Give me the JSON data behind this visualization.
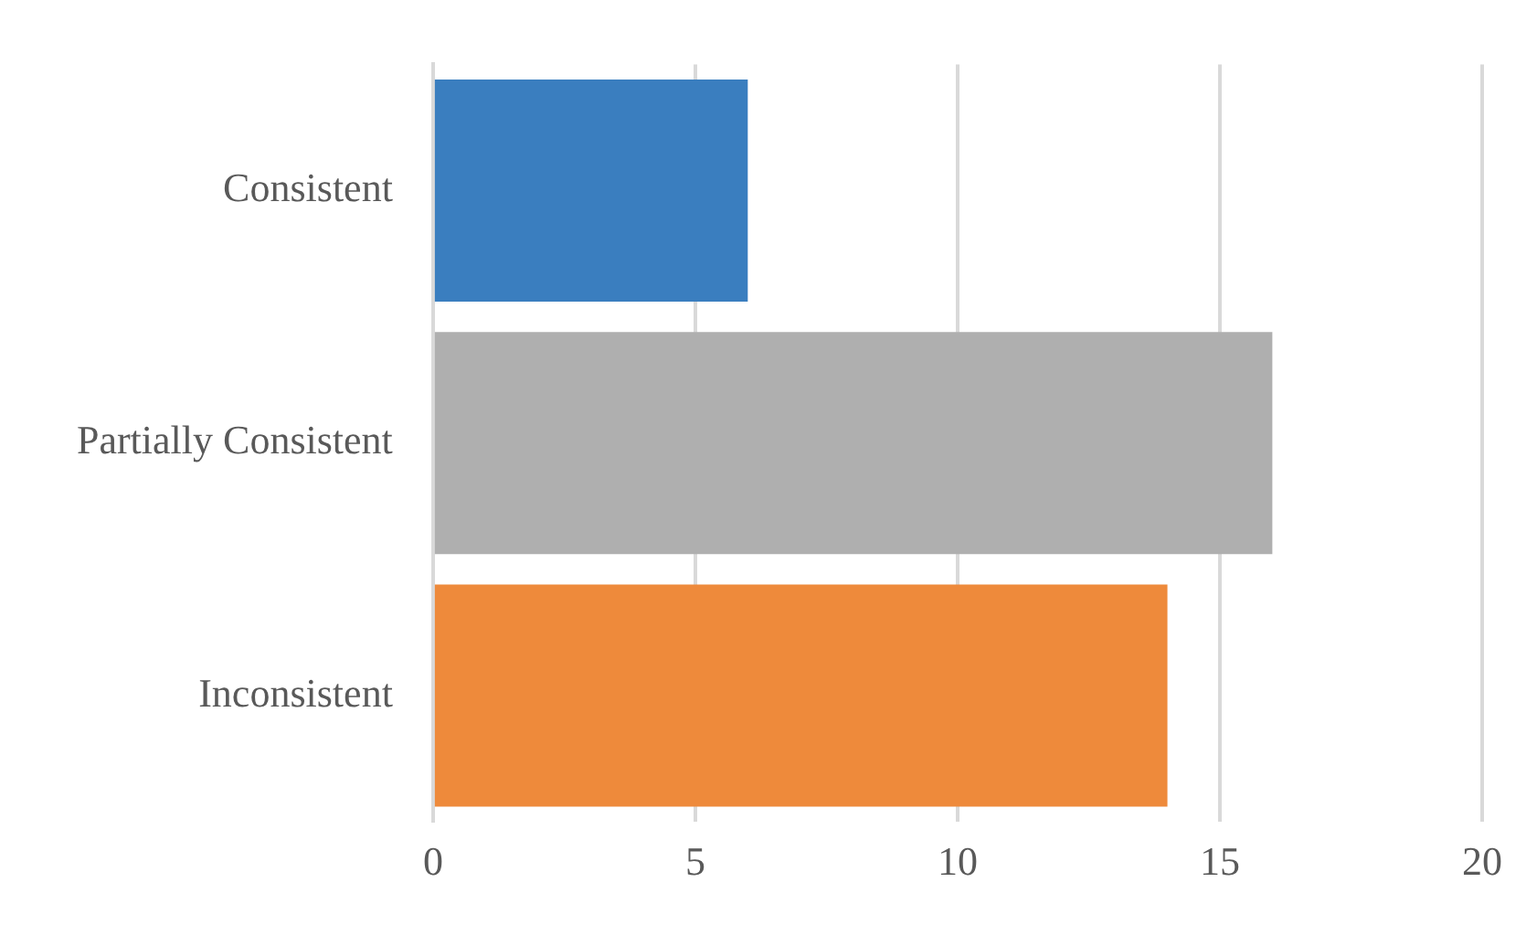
{
  "chart_data": {
    "type": "bar",
    "orientation": "horizontal",
    "categories": [
      "Consistent",
      "Partially Consistent",
      "Inconsistent"
    ],
    "values": [
      6,
      16,
      14
    ],
    "colors": [
      "#3a7ebf",
      "#afafaf",
      "#ee8a3b"
    ],
    "xlim": [
      0,
      20
    ],
    "xticks": [
      0,
      5,
      10,
      15,
      20
    ],
    "grid": "x",
    "legend": false
  }
}
